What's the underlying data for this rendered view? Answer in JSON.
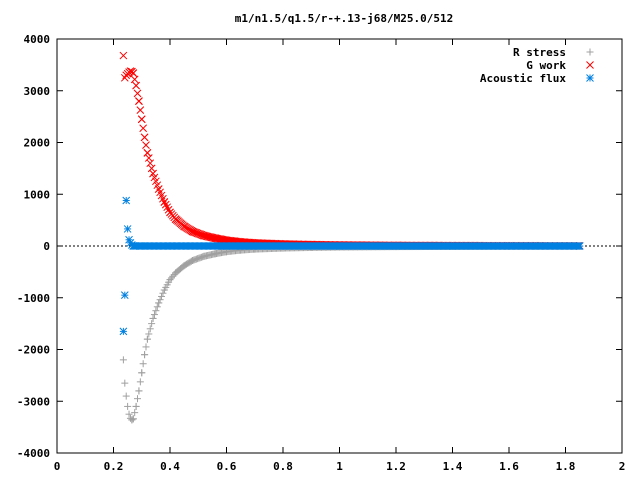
{
  "chart_data": {
    "type": "scatter",
    "title": "m1/n1.5/q1.5/r-+.13-j68/M25.0/512",
    "xlabel": "",
    "ylabel": "",
    "xlim": [
      0,
      2
    ],
    "ylim": [
      -4000,
      4000
    ],
    "x_ticks": [
      "0",
      "0.2",
      "0.4",
      "0.6",
      "0.8",
      "1",
      "1.2",
      "1.4",
      "1.6",
      "1.8",
      "2"
    ],
    "y_ticks": [
      "4000",
      "3000",
      "2000",
      "1000",
      "0",
      "-1000",
      "-2000",
      "-3000",
      "-4000"
    ],
    "x_tick_values": [
      0,
      0.2,
      0.4,
      0.6,
      0.8,
      1,
      1.2,
      1.4,
      1.6,
      1.8,
      2
    ],
    "y_tick_values": [
      4000,
      3000,
      2000,
      1000,
      0,
      -1000,
      -2000,
      -3000,
      -4000
    ],
    "grid": false,
    "legend_position": "top-right",
    "series": [
      {
        "name": "R stress",
        "marker": "plus",
        "color": "#a0a0a0",
        "x": [
          0.235,
          0.24,
          0.245,
          0.25,
          0.255,
          0.26,
          0.265,
          0.27,
          0.28,
          0.29,
          0.3,
          0.31,
          0.32,
          0.34,
          0.36,
          0.38,
          0.4,
          0.42,
          0.45,
          0.48,
          0.52,
          0.56,
          0.6,
          0.65,
          0.7,
          0.8,
          0.9,
          1.0,
          1.2,
          1.4,
          1.6,
          1.85
        ],
        "y": [
          -2200,
          -2650,
          -2900,
          -3100,
          -3250,
          -3330,
          -3360,
          -3340,
          -3100,
          -2800,
          -2450,
          -2100,
          -1800,
          -1400,
          -1100,
          -850,
          -650,
          -520,
          -380,
          -280,
          -200,
          -150,
          -110,
          -80,
          -60,
          -40,
          -28,
          -20,
          -12,
          -8,
          -5,
          -3
        ]
      },
      {
        "name": "G work",
        "marker": "cross",
        "color": "#ff0000",
        "x": [
          0.235,
          0.24,
          0.245,
          0.25,
          0.255,
          0.26,
          0.265,
          0.27,
          0.28,
          0.29,
          0.3,
          0.31,
          0.32,
          0.34,
          0.36,
          0.38,
          0.4,
          0.42,
          0.45,
          0.48,
          0.52,
          0.56,
          0.6,
          0.65,
          0.7,
          0.8,
          0.9,
          1.0,
          1.2,
          1.4,
          1.6,
          1.85
        ],
        "y": [
          3680,
          3250,
          3300,
          3330,
          3360,
          3380,
          3370,
          3340,
          3100,
          2800,
          2450,
          2100,
          1800,
          1400,
          1100,
          850,
          650,
          520,
          380,
          280,
          200,
          150,
          110,
          80,
          60,
          40,
          28,
          20,
          12,
          8,
          5,
          3
        ]
      },
      {
        "name": "Acoustic flux",
        "marker": "star",
        "color": "#0080e0",
        "x": [
          0.235,
          0.24,
          0.245,
          0.25,
          0.255,
          0.26,
          0.265,
          0.27,
          0.3,
          0.4,
          0.6,
          0.8,
          1.0,
          1.2,
          1.4,
          1.6,
          1.85
        ],
        "y": [
          -1650,
          -950,
          880,
          330,
          120,
          60,
          20,
          0,
          0,
          0,
          0,
          0,
          0,
          0,
          0,
          0,
          0
        ]
      }
    ]
  }
}
